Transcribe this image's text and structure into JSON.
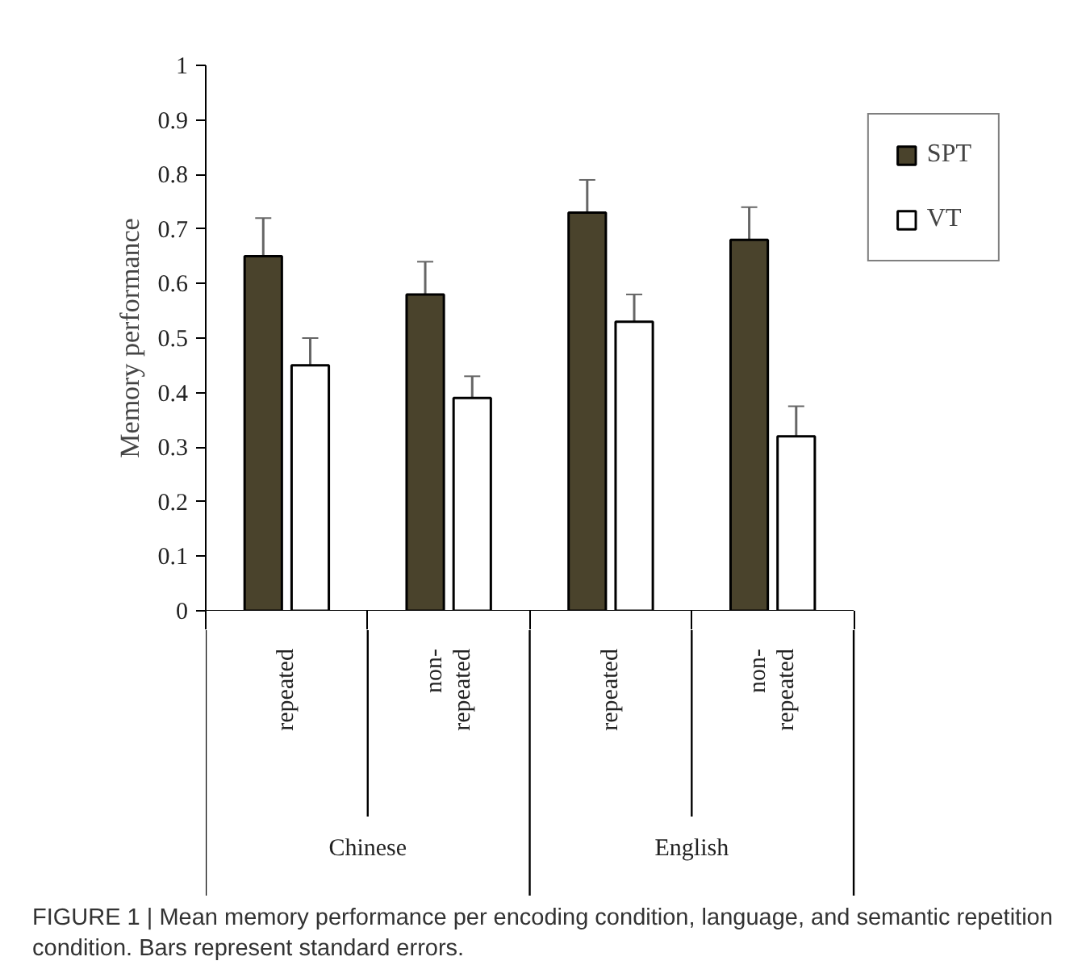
{
  "chart_data": {
    "type": "bar",
    "ylabel": "Memory performance",
    "categories": [
      "repeated",
      "non-\nrepeated",
      "repeated",
      "non-\nrepeated"
    ],
    "series": [
      {
        "name": "SPT",
        "color": "#4a432c",
        "values": [
          0.65,
          0.58,
          0.73,
          0.68
        ],
        "errors": [
          0.07,
          0.06,
          0.06,
          0.06
        ]
      },
      {
        "name": "VT",
        "color": "#ffffff",
        "values": [
          0.45,
          0.39,
          0.53,
          0.32
        ],
        "errors": [
          0.05,
          0.04,
          0.05,
          0.055
        ]
      }
    ],
    "ylim": [
      0,
      1
    ],
    "yticks": [
      0,
      {
        "value": 0.1,
        "label": "0.1"
      },
      {
        "value": 0.2,
        "label": "0.2"
      },
      {
        "value": 0.3,
        "label": "0.3"
      },
      {
        "value": 0.4,
        "label": "0.4"
      },
      {
        "value": 0.5,
        "label": "0.5"
      },
      {
        "value": 0.6,
        "label": "0.6"
      },
      {
        "value": 0.7,
        "label": "0.7"
      },
      {
        "value": 0.8,
        "label": "0.8"
      },
      {
        "value": 0.9,
        "label": "0.9"
      },
      1
    ],
    "grid": false,
    "legend": "top right",
    "annotations": [
      "Chinese",
      "English",
      "FIGURE 1 | Mean memory performance per encoding condition, language, and semantic repetition condition. Bars represent standard errors."
    ]
  }
}
